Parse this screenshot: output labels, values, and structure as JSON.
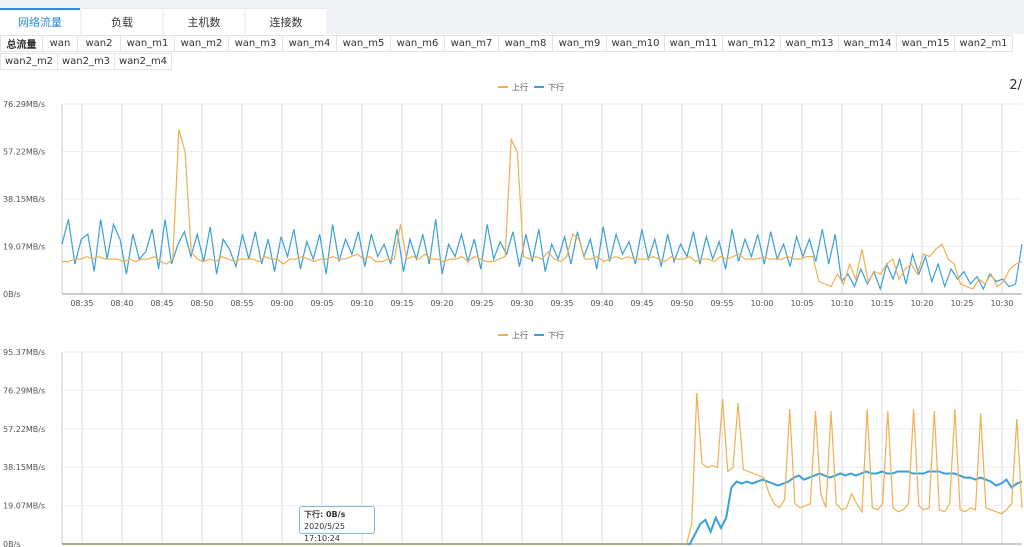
{
  "main_tabs": [
    {
      "label": "网络流量",
      "active": true
    },
    {
      "label": "负载",
      "active": false
    },
    {
      "label": "主机数",
      "active": false
    },
    {
      "label": "连接数",
      "active": false
    }
  ],
  "sub_tabs_row1": [
    "总流量",
    "wan",
    "wan2",
    "wan_m1",
    "wan_m2",
    "wan_m3",
    "wan_m4",
    "wan_m5",
    "wan_m6",
    "wan_m7",
    "wan_m8",
    "wan_m9",
    "wan_m10",
    "wan_m11",
    "wan_m12",
    "wan_m13",
    "wan_m14",
    "wan_m15",
    "wan2_m1"
  ],
  "sub_tabs_row2": [
    "wan2_m2",
    "wan2_m3",
    "wan2_m4"
  ],
  "active_sub_tab": "总流量",
  "pager": "2/",
  "tooltip": {
    "series_line": "下行: 0B/s",
    "time": "2020/5/25 17:10:24"
  },
  "colors": {
    "up": "#f0b050",
    "down": "#3aa0d8",
    "active_tab": "#2f8ad6"
  },
  "chart_data": [
    {
      "type": "line",
      "legend": [
        "上行",
        "下行"
      ],
      "legend_placement": "top-center",
      "y_ticks": [
        "0B/s",
        "19.07MB/s",
        "38.15MB/s",
        "57.22MB/s",
        "76.29MB/s"
      ],
      "ylim": [
        0,
        76.29
      ],
      "x_ticks": [
        "08:35",
        "08:40",
        "08:45",
        "08:50",
        "08:55",
        "09:00",
        "09:05",
        "09:10",
        "09:15",
        "09:20",
        "09:25",
        "09:30",
        "09:35",
        "09:40",
        "09:45",
        "09:50",
        "09:55",
        "10:00",
        "10:05",
        "10:10",
        "10:15",
        "10:20",
        "10:25",
        "10:30"
      ],
      "grid": true,
      "series": [
        {
          "name": "上行",
          "color": "#f0b050",
          "values": [
            13,
            13,
            14,
            14,
            15,
            14,
            15,
            14,
            14,
            14,
            13,
            14,
            13,
            14,
            14,
            15,
            13,
            12,
            14,
            66,
            57,
            17,
            14,
            13,
            14,
            13,
            15,
            14,
            13,
            14,
            14,
            14,
            13,
            15,
            14,
            14,
            12,
            14,
            14,
            15,
            14,
            13,
            14,
            14,
            15,
            14,
            14,
            15,
            16,
            14,
            15,
            13,
            13,
            14,
            14,
            28,
            14,
            15,
            14,
            16,
            14,
            14,
            13,
            14,
            14,
            15,
            13,
            15,
            14,
            13,
            13,
            14,
            15,
            62,
            57,
            15,
            14,
            15,
            14,
            17,
            14,
            13,
            15,
            24,
            22,
            14,
            14,
            15,
            13,
            14,
            15,
            14,
            15,
            14,
            14,
            14,
            15,
            14,
            13,
            15,
            14,
            14,
            15,
            13,
            14,
            14,
            13,
            15,
            14,
            15,
            16,
            14,
            14,
            14,
            15,
            14,
            14,
            14,
            15,
            14,
            14,
            15,
            15,
            5,
            4,
            3,
            8,
            4,
            12,
            6,
            18,
            5,
            9,
            8,
            12,
            14,
            6,
            10,
            12,
            8,
            16,
            15,
            18,
            20,
            14,
            12,
            4,
            3,
            2,
            6,
            4,
            8,
            3,
            5,
            10,
            12,
            13
          ]
        },
        {
          "name": "下行",
          "color": "#3aa0d8",
          "values": [
            20,
            30,
            12,
            22,
            24,
            9,
            30,
            14,
            28,
            22,
            8,
            24,
            14,
            17,
            26,
            10,
            30,
            12,
            20,
            25,
            15,
            24,
            13,
            27,
            8,
            22,
            18,
            11,
            24,
            14,
            25,
            12,
            22,
            9,
            23,
            15,
            26,
            10,
            21,
            14,
            24,
            8,
            28,
            13,
            22,
            16,
            25,
            11,
            24,
            15,
            20,
            12,
            26,
            9,
            22,
            14,
            24,
            12,
            30,
            8,
            20,
            15,
            24,
            13,
            22,
            10,
            28,
            14,
            21,
            16,
            25,
            11,
            24,
            13,
            26,
            9,
            20,
            14,
            23,
            12,
            25,
            15,
            22,
            10,
            27,
            13,
            24,
            16,
            21,
            12,
            26,
            14,
            22,
            11,
            24,
            13,
            20,
            15,
            25,
            12,
            23,
            14,
            21,
            10,
            26,
            13,
            22,
            15,
            24,
            12,
            25,
            14,
            20,
            11,
            23,
            15,
            22,
            13,
            26,
            12,
            24,
            5,
            8,
            3,
            10,
            4,
            9,
            2,
            12,
            6,
            14,
            4,
            16,
            8,
            15,
            5,
            12,
            3,
            10,
            6,
            9,
            4,
            7,
            2,
            8,
            5,
            6,
            3,
            4,
            20
          ]
        }
      ]
    },
    {
      "type": "line",
      "legend": [
        "上行",
        "下行"
      ],
      "legend_placement": "top-center",
      "y_ticks": [
        "0B/s",
        "19.07MB/s",
        "38.15MB/s",
        "57.22MB/s",
        "76.29MB/s",
        "95.37MB/s"
      ],
      "ylim": [
        0,
        95.37
      ],
      "grid": true,
      "series": [
        {
          "name": "上行",
          "color": "#f0b050",
          "values": [
            0,
            0,
            0,
            0,
            0,
            0,
            0,
            0,
            0,
            0,
            0,
            0,
            0,
            0,
            0,
            0,
            0,
            0,
            0,
            0,
            0,
            0,
            0,
            0,
            0,
            0,
            0,
            0,
            0,
            0,
            0,
            0,
            0,
            0,
            0,
            0,
            0,
            0,
            0,
            0,
            0,
            0,
            0,
            0,
            0,
            0,
            0,
            0,
            0,
            0,
            0,
            0,
            0,
            0,
            0,
            0,
            0,
            0,
            0,
            0,
            0,
            0,
            0,
            0,
            0,
            0,
            0,
            0,
            0,
            0,
            0,
            0,
            0,
            0,
            0,
            0,
            0,
            0,
            0,
            0,
            0,
            0,
            0,
            0,
            0,
            0,
            0,
            0,
            0,
            0,
            0,
            0,
            0,
            0,
            0,
            0,
            0,
            0,
            0,
            0,
            0,
            0,
            0,
            0,
            0,
            0,
            0,
            0,
            0,
            0,
            0,
            0,
            0,
            0,
            0,
            0,
            0,
            0,
            0,
            0,
            0,
            0,
            10,
            75,
            40,
            38,
            39,
            38,
            72,
            36,
            38,
            70,
            37,
            36,
            35,
            34,
            33,
            25,
            20,
            18,
            22,
            67,
            20,
            18,
            19,
            20,
            66,
            25,
            18,
            66,
            20,
            17,
            18,
            25,
            20,
            16,
            67,
            18,
            17,
            20,
            66,
            18,
            16,
            17,
            20,
            67,
            19,
            17,
            18,
            66,
            17,
            16,
            20,
            67,
            17,
            16,
            18,
            17,
            65,
            18,
            17,
            16,
            15,
            17,
            20,
            62,
            18
          ]
        },
        {
          "name": "下行",
          "color": "#3aa0d8",
          "values": [
            0,
            0,
            0,
            0,
            0,
            0,
            0,
            0,
            0,
            0,
            0,
            0,
            0,
            0,
            0,
            0,
            0,
            0,
            0,
            0,
            0,
            0,
            0,
            0,
            0,
            0,
            0,
            0,
            0,
            0,
            0,
            0,
            0,
            0,
            0,
            0,
            0,
            0,
            0,
            0,
            0,
            0,
            0,
            0,
            0,
            0,
            0,
            0,
            0,
            0,
            0,
            0,
            0,
            0,
            0,
            0,
            0,
            0,
            0,
            0,
            0,
            0,
            0,
            0,
            0,
            0,
            0,
            0,
            0,
            0,
            0,
            0,
            0,
            0,
            0,
            0,
            0,
            0,
            0,
            0,
            0,
            0,
            0,
            0,
            0,
            0,
            0,
            0,
            0,
            0,
            0,
            0,
            0,
            0,
            0,
            0,
            0,
            0,
            0,
            0,
            0,
            0,
            0,
            0,
            0,
            0,
            0,
            0,
            0,
            0,
            0,
            0,
            0,
            0,
            0,
            0,
            0,
            0,
            0,
            0,
            0,
            0,
            5,
            10,
            12,
            6,
            13,
            8,
            13,
            28,
            31,
            30,
            31,
            30,
            31,
            32,
            31,
            30,
            29,
            30,
            31,
            33,
            34,
            32,
            33,
            34,
            35,
            34,
            33,
            34,
            35,
            34,
            35,
            34,
            35,
            36,
            35,
            35,
            36,
            35,
            35,
            36,
            36,
            36,
            35,
            35,
            35,
            36,
            36,
            36,
            35,
            35,
            35,
            34,
            33,
            33,
            32,
            33,
            32,
            31,
            29,
            30,
            32,
            28,
            30,
            31
          ]
        }
      ]
    }
  ]
}
